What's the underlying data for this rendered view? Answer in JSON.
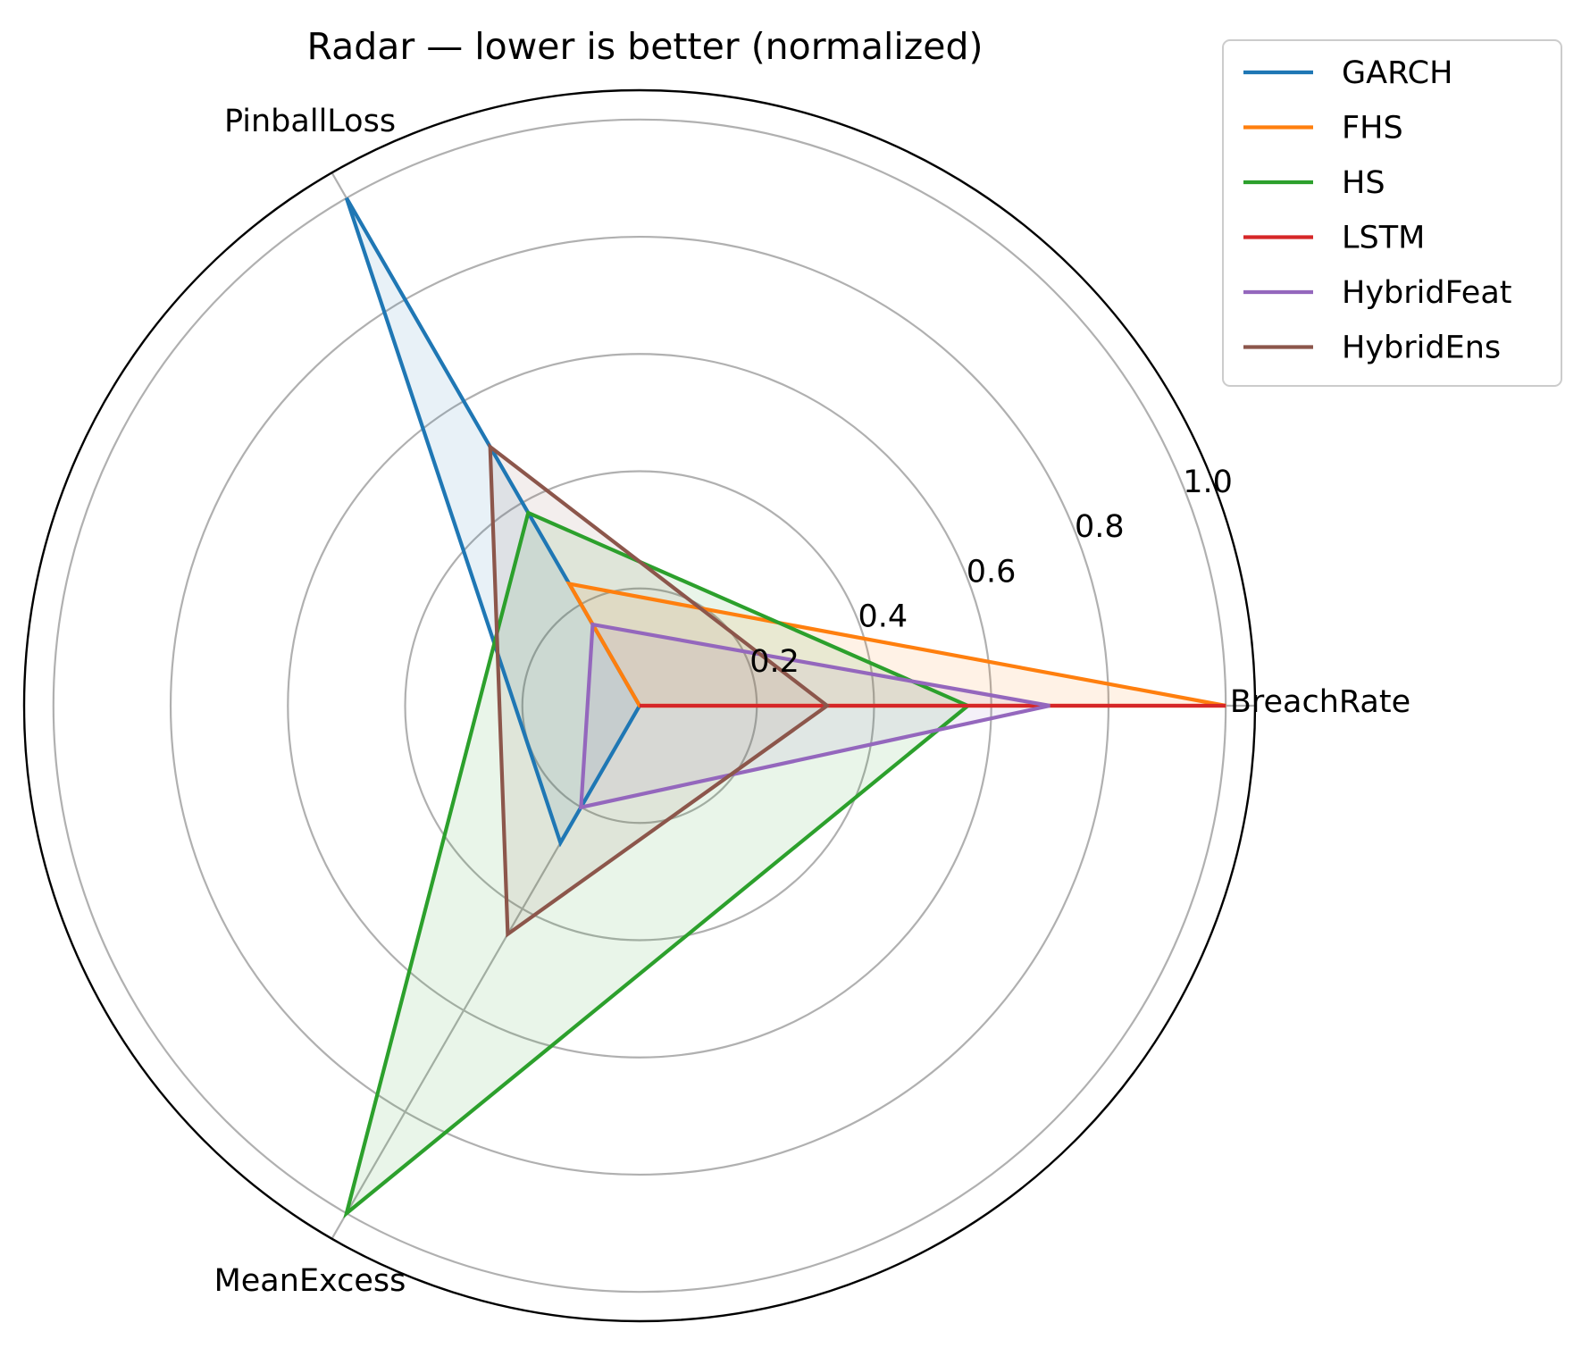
{
  "chart_data": {
    "type": "radar",
    "title": "Radar — lower is better (normalized)",
    "axes": [
      "BreachRate",
      "PinballLoss",
      "MeanExcess"
    ],
    "r_ticks": [
      0.2,
      0.4,
      0.6,
      0.8,
      1.0
    ],
    "r_tick_labels": [
      "0.2",
      "0.4",
      "0.6",
      "0.8",
      "1.0"
    ],
    "rlim": [
      0,
      1.05
    ],
    "grid": true,
    "legend_placement": "top-right outside",
    "series": [
      {
        "name": "GARCH",
        "color": "#1f77b4",
        "values": [
          0.0,
          1.0,
          0.27
        ]
      },
      {
        "name": "FHS",
        "color": "#ff7f0e",
        "values": [
          1.0,
          0.24,
          0.0
        ]
      },
      {
        "name": "HS",
        "color": "#2ca02c",
        "values": [
          0.56,
          0.38,
          1.0
        ]
      },
      {
        "name": "LSTM",
        "color": "#d62728",
        "values": [
          1.0,
          0.0,
          0.0
        ]
      },
      {
        "name": "HybridFeat",
        "color": "#9467bd",
        "values": [
          0.7,
          0.16,
          0.2
        ]
      },
      {
        "name": "HybridEns",
        "color": "#8c564b",
        "values": [
          0.32,
          0.51,
          0.45
        ]
      }
    ]
  }
}
